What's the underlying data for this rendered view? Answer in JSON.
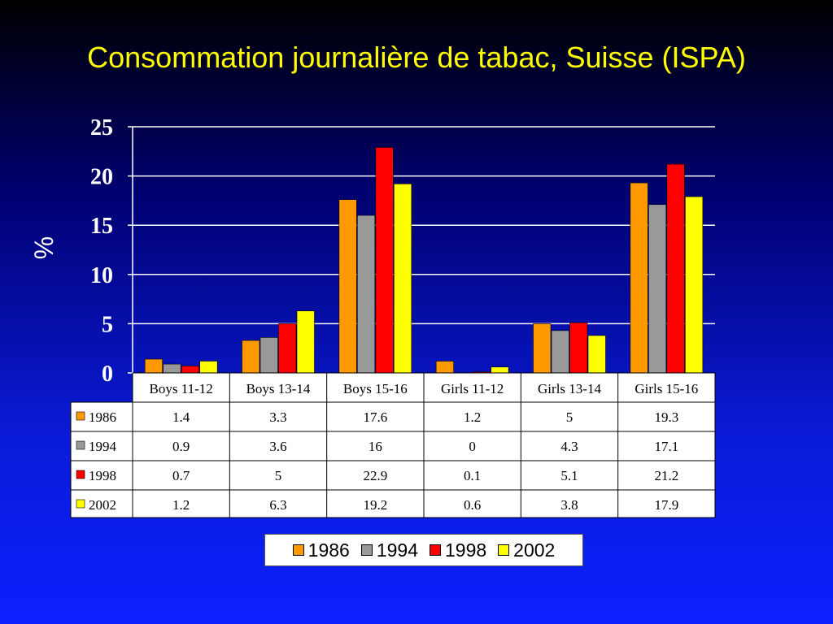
{
  "slide": {
    "title": "Consommation journalière de tabac, Suisse (ISPA)"
  },
  "chart_data": {
    "type": "bar",
    "title": "Consommation journalière de tabac, Suisse (ISPA)",
    "xlabel": "",
    "ylabel": "%",
    "ylim": [
      0,
      25
    ],
    "yticks": [
      0,
      5,
      10,
      15,
      20,
      25
    ],
    "grid": true,
    "legend": "bottom",
    "categories": [
      "Boys 11-12",
      "Boys 13-14",
      "Boys 15-16",
      "Girls 11-12",
      "Girls 13-14",
      "Girls 15-16"
    ],
    "series": [
      {
        "name": "1986",
        "color": "#ff9900",
        "values": [
          1.4,
          3.3,
          17.6,
          1.2,
          5,
          19.3
        ]
      },
      {
        "name": "1994",
        "color": "#999999",
        "values": [
          0.9,
          3.6,
          16,
          0,
          4.3,
          17.1
        ]
      },
      {
        "name": "1998",
        "color": "#ff0000",
        "values": [
          0.7,
          5,
          22.9,
          0.1,
          5.1,
          21.2
        ]
      },
      {
        "name": "2002",
        "color": "#ffff00",
        "values": [
          1.2,
          6.3,
          19.2,
          0.6,
          3.8,
          17.9
        ]
      }
    ],
    "data_table": [
      [
        "1.4",
        "3.3",
        "17.6",
        "1.2",
        "5",
        "19.3"
      ],
      [
        "0.9",
        "3.6",
        "16",
        "0",
        "4.3",
        "17.1"
      ],
      [
        "0.7",
        "5",
        "22.9",
        "0.1",
        "5.1",
        "21.2"
      ],
      [
        "1.2",
        "6.3",
        "19.2",
        "0.6",
        "3.8",
        "17.9"
      ]
    ]
  }
}
